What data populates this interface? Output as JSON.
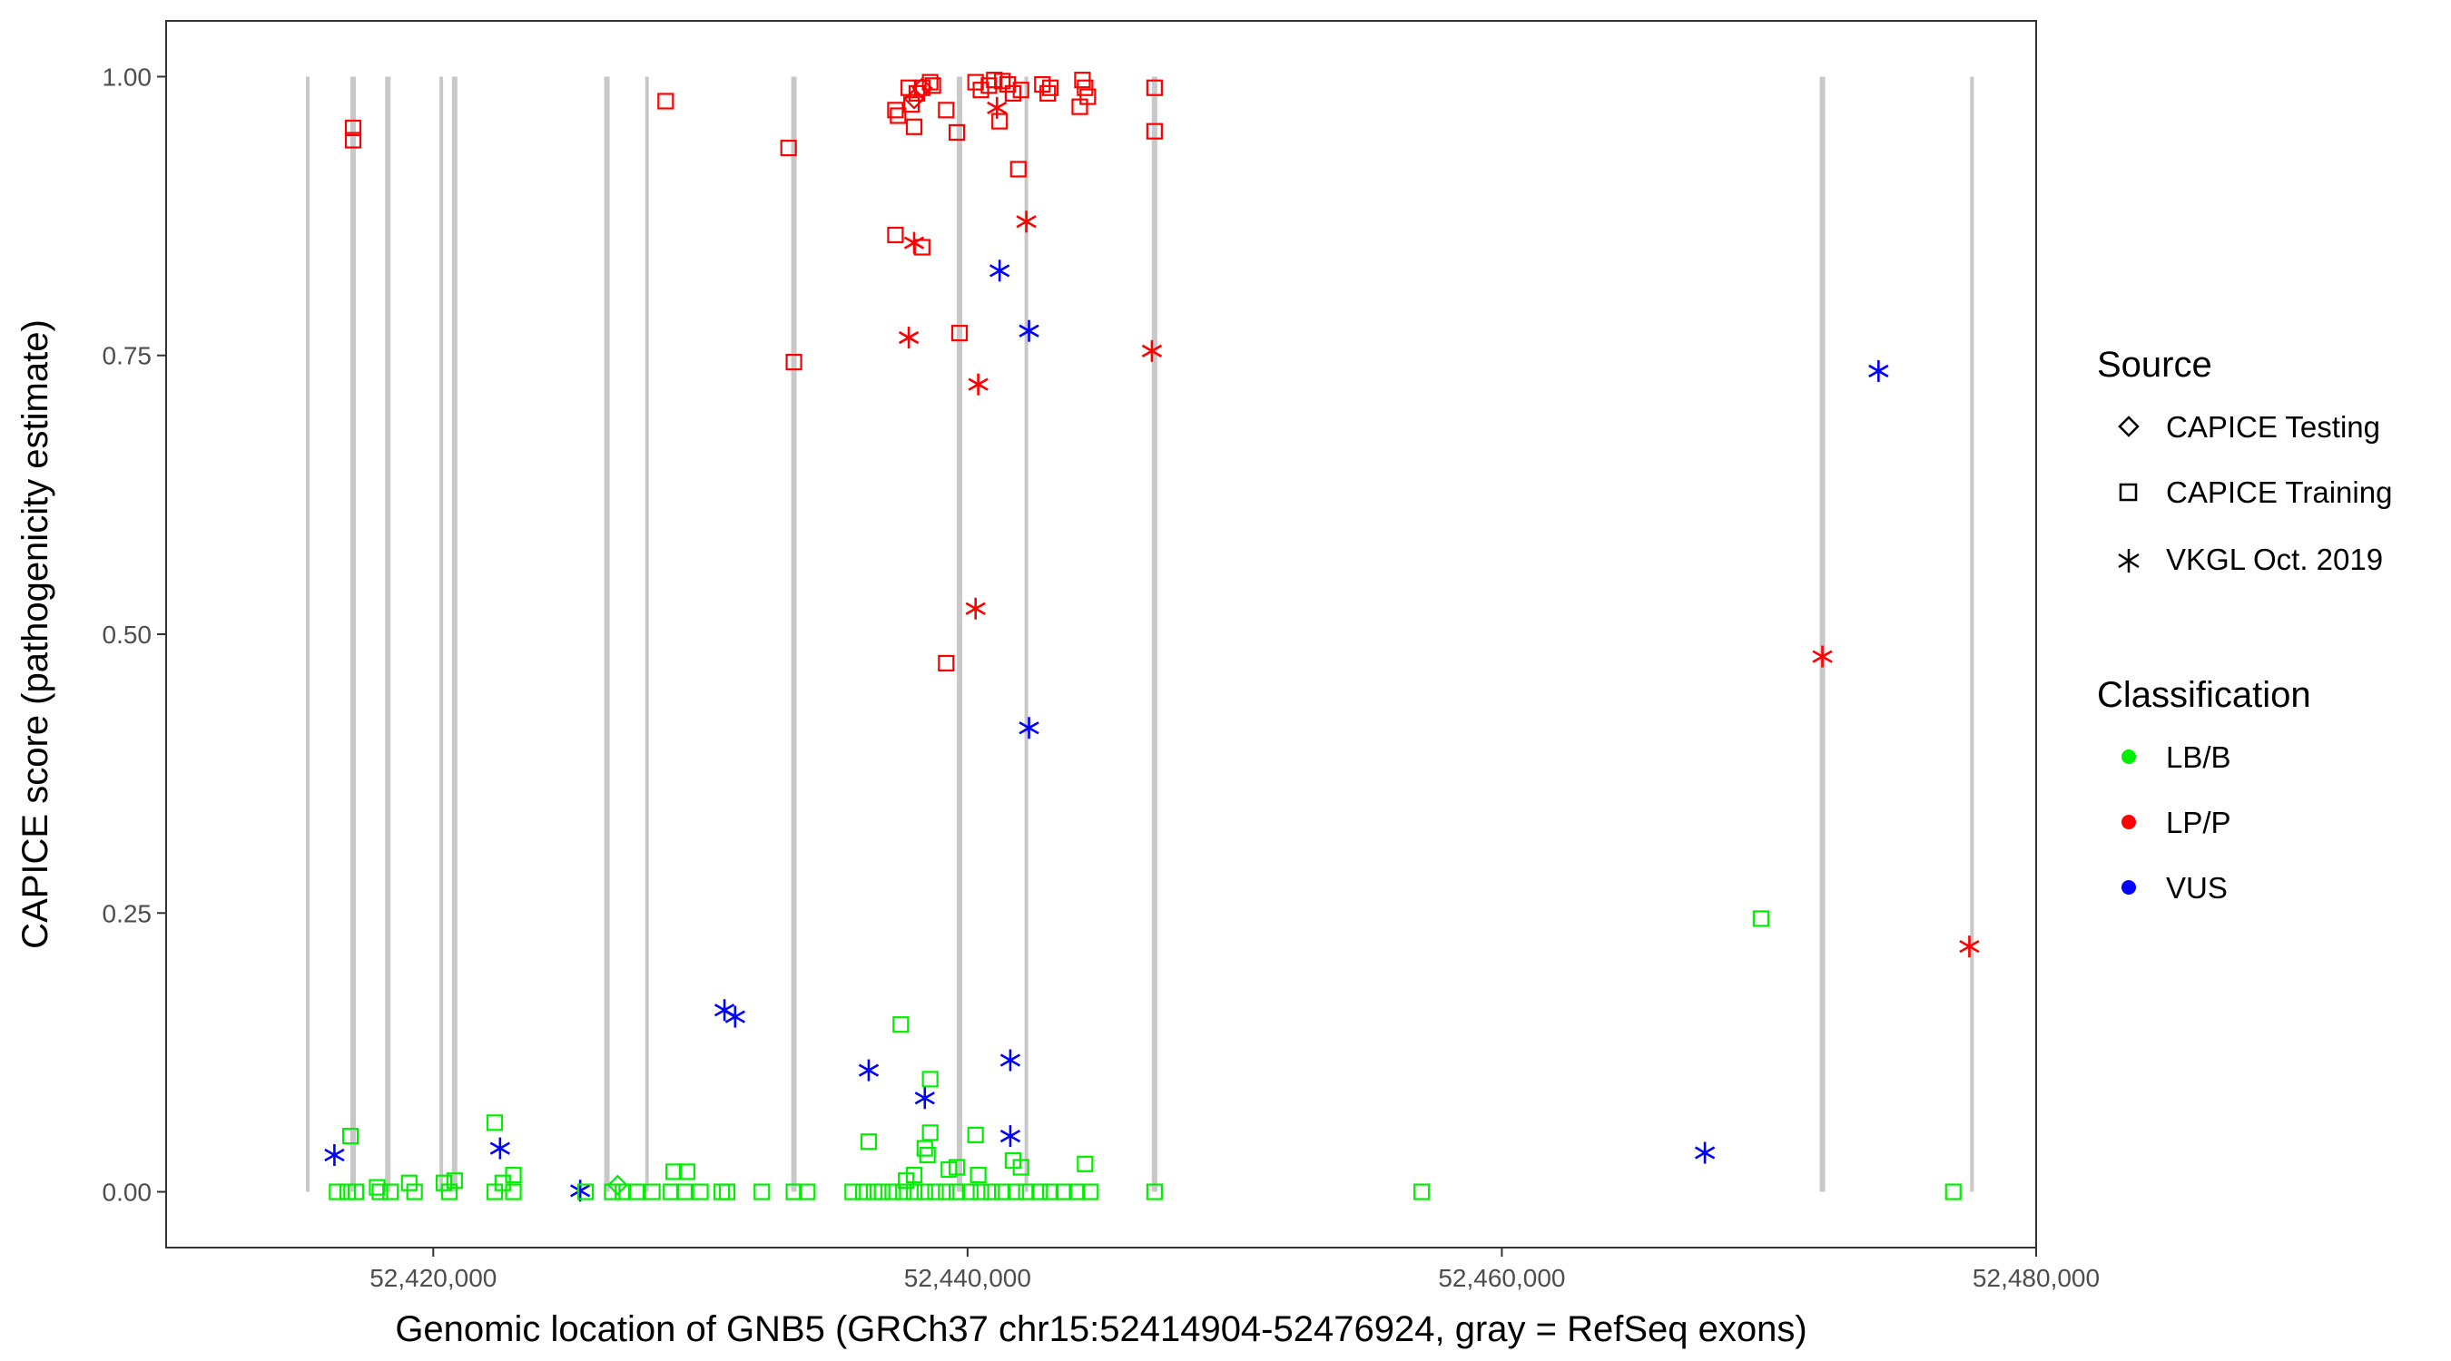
{
  "chart_data": {
    "type": "scatter",
    "xlabel": "Genomic location of GNB5 (GRCh37 chr15:52414904-52476924, gray = RefSeq exons)",
    "ylabel": "CAPICE score (pathogenicity estimate)",
    "xlim": [
      52410000,
      52480000
    ],
    "ylim": [
      -0.05,
      1.05
    ],
    "x_ticks": [
      52420000,
      52440000,
      52460000,
      52480000
    ],
    "x_tick_labels": [
      "52,420,000",
      "52,440,000",
      "52,460,000",
      "52,480,000"
    ],
    "y_ticks": [
      0,
      0.25,
      0.5,
      0.75,
      1.0
    ],
    "y_tick_labels": [
      "0.00",
      "0.25",
      "0.50",
      "0.75",
      "1.00"
    ],
    "grid": false,
    "exon_color": "#c8c8c8",
    "exons": [
      52415300,
      52417000,
      52418300,
      52420300,
      52420800,
      52426500,
      52428000,
      52433500,
      52439700,
      52442200,
      52447000,
      52472000,
      52477600
    ],
    "legend": {
      "source_title": "Source",
      "sources": [
        {
          "label": "CAPICE Testing",
          "shape": "diamond"
        },
        {
          "label": "CAPICE Training",
          "shape": "square"
        },
        {
          "label": "VKGL Oct. 2019",
          "shape": "asterisk"
        }
      ],
      "classification_title": "Classification",
      "classes": [
        {
          "label": "LB/B",
          "color": "#00ee00"
        },
        {
          "label": "LP/P",
          "color": "#ff0000"
        },
        {
          "label": "VUS",
          "color": "#0000ff"
        }
      ],
      "placement": "right"
    },
    "series": [
      {
        "name": "CAPICE Training",
        "class": "LP/P",
        "points": [
          [
            52417000,
            0.954
          ],
          [
            52417000,
            0.943
          ],
          [
            52428700,
            0.978
          ],
          [
            52433300,
            0.936
          ],
          [
            52433500,
            0.744
          ],
          [
            52437300,
            0.97
          ],
          [
            52437400,
            0.965
          ],
          [
            52437800,
            0.99
          ],
          [
            52437900,
            0.975
          ],
          [
            52438000,
            0.955
          ],
          [
            52438100,
            0.985
          ],
          [
            52438300,
            0.99
          ],
          [
            52438600,
            0.995
          ],
          [
            52438700,
            0.992
          ],
          [
            52439200,
            0.97
          ],
          [
            52439600,
            0.95
          ],
          [
            52440300,
            0.995
          ],
          [
            52440500,
            0.988
          ],
          [
            52440800,
            0.992
          ],
          [
            52441000,
            0.997
          ],
          [
            52441200,
            0.96
          ],
          [
            52441300,
            0.996
          ],
          [
            52441500,
            0.993
          ],
          [
            52441700,
            0.985
          ],
          [
            52441900,
            0.917
          ],
          [
            52442000,
            0.988
          ],
          [
            52442800,
            0.993
          ],
          [
            52443000,
            0.985
          ],
          [
            52443100,
            0.99
          ],
          [
            52444200,
            0.973
          ],
          [
            52444300,
            0.997
          ],
          [
            52444400,
            0.99
          ],
          [
            52444500,
            0.982
          ],
          [
            52447000,
            0.99
          ],
          [
            52447000,
            0.951
          ],
          [
            52437300,
            0.858
          ],
          [
            52438300,
            0.847
          ],
          [
            52439700,
            0.77
          ],
          [
            52439200,
            0.474
          ]
        ]
      },
      {
        "name": "CAPICE Testing",
        "class": "LP/P",
        "points": [
          [
            52438300,
            0.99
          ],
          [
            52438000,
            0.98
          ]
        ]
      },
      {
        "name": "VKGL Oct. 2019",
        "class": "LP/P",
        "points": [
          [
            52441100,
            0.972
          ],
          [
            52438000,
            0.851
          ],
          [
            52442200,
            0.87
          ],
          [
            52437800,
            0.766
          ],
          [
            52440400,
            0.724
          ],
          [
            52446900,
            0.754
          ],
          [
            52440300,
            0.523
          ],
          [
            52472000,
            0.48
          ],
          [
            52477500,
            0.22
          ]
        ]
      },
      {
        "name": "VKGL Oct. 2019",
        "class": "VUS",
        "points": [
          [
            52441200,
            0.826
          ],
          [
            52442300,
            0.772
          ],
          [
            52442300,
            0.416
          ],
          [
            52474100,
            0.736
          ],
          [
            52430900,
            0.163
          ],
          [
            52431300,
            0.157
          ],
          [
            52436300,
            0.109
          ],
          [
            52438400,
            0.084
          ],
          [
            52441600,
            0.118
          ],
          [
            52441600,
            0.05
          ],
          [
            52416300,
            0.033
          ],
          [
            52422500,
            0.039
          ],
          [
            52425500,
            0.001
          ],
          [
            52467600,
            0.035
          ]
        ]
      },
      {
        "name": "CAPICE Training",
        "class": "LB/B",
        "points": [
          [
            52437500,
            0.15
          ],
          [
            52438600,
            0.101
          ],
          [
            52438600,
            0.053
          ],
          [
            52436300,
            0.045
          ],
          [
            52438400,
            0.039
          ],
          [
            52438500,
            0.033
          ],
          [
            52440300,
            0.051
          ],
          [
            52441700,
            0.028
          ],
          [
            52442000,
            0.022
          ],
          [
            52444400,
            0.025
          ],
          [
            52416900,
            0.05
          ],
          [
            52422300,
            0.062
          ],
          [
            52423000,
            0.015
          ],
          [
            52422600,
            0.008
          ],
          [
            52420400,
            0.008
          ],
          [
            52420800,
            0.01
          ],
          [
            52419100,
            0.008
          ],
          [
            52417900,
            0.004
          ],
          [
            52429000,
            0.018
          ],
          [
            52429500,
            0.018
          ],
          [
            52439300,
            0.02
          ],
          [
            52439600,
            0.022
          ],
          [
            52440400,
            0.015
          ],
          [
            52438000,
            0.015
          ],
          [
            52437700,
            0.01
          ],
          [
            52469700,
            0.245
          ],
          [
            52416400,
            0
          ],
          [
            52416800,
            0
          ],
          [
            52417100,
            0
          ],
          [
            52418000,
            0
          ],
          [
            52418400,
            0
          ],
          [
            52419300,
            0
          ],
          [
            52420600,
            0
          ],
          [
            52422300,
            0
          ],
          [
            52423000,
            0
          ],
          [
            52425700,
            0
          ],
          [
            52426700,
            0
          ],
          [
            52427100,
            0
          ],
          [
            52427600,
            0
          ],
          [
            52428200,
            0
          ],
          [
            52428900,
            0
          ],
          [
            52429400,
            0
          ],
          [
            52430000,
            0
          ],
          [
            52430800,
            0
          ],
          [
            52431000,
            0
          ],
          [
            52432300,
            0
          ],
          [
            52433500,
            0
          ],
          [
            52434000,
            0
          ],
          [
            52435700,
            0
          ],
          [
            52436100,
            0
          ],
          [
            52436500,
            0
          ],
          [
            52436800,
            0
          ],
          [
            52437200,
            0
          ],
          [
            52437600,
            0
          ],
          [
            52438000,
            0
          ],
          [
            52438400,
            0
          ],
          [
            52438800,
            0
          ],
          [
            52439200,
            0
          ],
          [
            52439600,
            0
          ],
          [
            52440100,
            0
          ],
          [
            52440500,
            0
          ],
          [
            52440900,
            0
          ],
          [
            52441300,
            0
          ],
          [
            52441800,
            0
          ],
          [
            52442200,
            0
          ],
          [
            52442700,
            0
          ],
          [
            52443100,
            0
          ],
          [
            52443600,
            0
          ],
          [
            52444100,
            0
          ],
          [
            52444600,
            0
          ],
          [
            52447000,
            0
          ],
          [
            52457000,
            0
          ],
          [
            52476900,
            0
          ]
        ]
      },
      {
        "name": "CAPICE Testing",
        "class": "LB/B",
        "points": [
          [
            52426900,
            0.006
          ]
        ]
      }
    ]
  }
}
